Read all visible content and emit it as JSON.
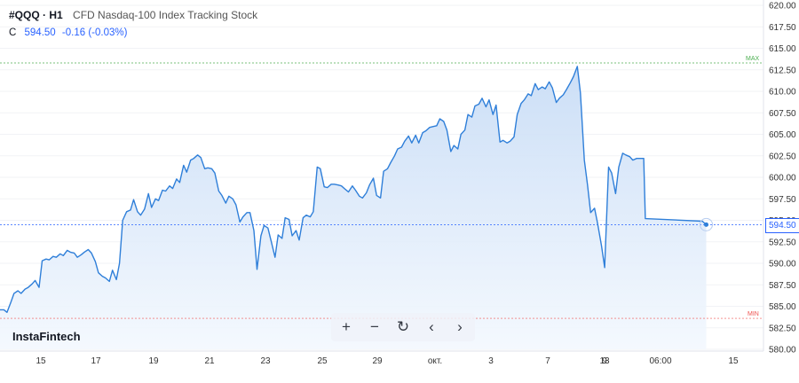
{
  "header": {
    "symbol": "#QQQ · H1",
    "description": "CFD Nasdaq-100 Index Tracking Stock",
    "close_label": "C",
    "close_value": "594.50",
    "change": "-0.16 (-0.03%)"
  },
  "brand": "InstaFintech",
  "toolbar": {
    "buttons": [
      {
        "label": "+",
        "icon": "zoom-in-icon"
      },
      {
        "label": "−",
        "icon": "zoom-out-icon"
      },
      {
        "label": "↻",
        "icon": "reset-icon"
      },
      {
        "label": "‹",
        "icon": "scroll-left-icon"
      },
      {
        "label": "›",
        "icon": "scroll-right-icon"
      }
    ]
  },
  "current_price_label": "594.50",
  "colors": {
    "line": "#2f7fd9",
    "area_top": "#c9ddf6",
    "area_bottom": "#f3f8fe",
    "max_line": "#4caf50",
    "min_line": "#ef5350",
    "price_line": "#2962ff"
  },
  "chart_data": {
    "type": "area",
    "title": "#QQQ · H1",
    "subtitle": "CFD Nasdaq-100 Index Tracking Stock",
    "y_ticks": [
      "620.00",
      "617.50",
      "615.00",
      "612.50",
      "610.00",
      "607.50",
      "605.00",
      "602.50",
      "600.00",
      "597.50",
      "595.00",
      "592.50",
      "590.00",
      "587.50",
      "585.00",
      "582.50",
      "580.00"
    ],
    "ylim": [
      580,
      620
    ],
    "x_ticks": [
      "15",
      "17",
      "19",
      "21",
      "23",
      "25",
      "29",
      "окт.",
      "3",
      "7",
      "9",
      "13",
      "06:00",
      "15"
    ],
    "max_label": "MAX",
    "max_value": 613.3,
    "min_label": "MIN",
    "min_value": 583.6,
    "last_value": 594.5,
    "x_range": [
      0,
      100
    ],
    "points": [
      [
        0,
        584.6
      ],
      [
        0.5,
        584.6
      ],
      [
        0.9,
        584.3
      ],
      [
        1.4,
        585.5
      ],
      [
        1.8,
        586.5
      ],
      [
        2.3,
        586.8
      ],
      [
        2.7,
        586.5
      ],
      [
        3.2,
        587.0
      ],
      [
        3.6,
        587.2
      ],
      [
        4.1,
        587.6
      ],
      [
        4.5,
        588.0
      ],
      [
        5.0,
        587.2
      ],
      [
        5.4,
        590.3
      ],
      [
        5.9,
        590.5
      ],
      [
        6.3,
        590.4
      ],
      [
        6.8,
        590.8
      ],
      [
        7.2,
        590.7
      ],
      [
        7.7,
        591.1
      ],
      [
        8.1,
        590.9
      ],
      [
        8.6,
        591.5
      ],
      [
        9.0,
        591.3
      ],
      [
        9.5,
        591.2
      ],
      [
        9.9,
        590.7
      ],
      [
        10.4,
        591.0
      ],
      [
        10.8,
        591.3
      ],
      [
        11.3,
        591.6
      ],
      [
        11.7,
        591.2
      ],
      [
        12.2,
        590.2
      ],
      [
        12.6,
        588.9
      ],
      [
        13.1,
        588.5
      ],
      [
        13.5,
        588.3
      ],
      [
        14.0,
        587.9
      ],
      [
        14.4,
        589.2
      ],
      [
        14.9,
        588.1
      ],
      [
        15.3,
        590.0
      ],
      [
        15.7,
        595.0
      ],
      [
        16.2,
        596.0
      ],
      [
        16.7,
        596.2
      ],
      [
        17.1,
        597.4
      ],
      [
        17.6,
        596.0
      ],
      [
        18.0,
        595.6
      ],
      [
        18.5,
        596.3
      ],
      [
        19.0,
        598.1
      ],
      [
        19.4,
        596.5
      ],
      [
        19.9,
        597.5
      ],
      [
        20.3,
        597.3
      ],
      [
        20.8,
        598.5
      ],
      [
        21.2,
        598.4
      ],
      [
        21.7,
        599.0
      ],
      [
        22.1,
        598.7
      ],
      [
        22.6,
        599.8
      ],
      [
        23.0,
        599.4
      ],
      [
        23.5,
        601.4
      ],
      [
        23.9,
        600.6
      ],
      [
        24.4,
        602.0
      ],
      [
        24.8,
        602.2
      ],
      [
        25.3,
        602.6
      ],
      [
        25.7,
        602.3
      ],
      [
        26.2,
        601.0
      ],
      [
        26.6,
        601.1
      ],
      [
        27.1,
        601.0
      ],
      [
        27.5,
        600.5
      ],
      [
        28.0,
        598.4
      ],
      [
        28.4,
        597.9
      ],
      [
        28.9,
        597.0
      ],
      [
        29.3,
        597.8
      ],
      [
        29.8,
        597.5
      ],
      [
        30.2,
        596.8
      ],
      [
        30.7,
        594.8
      ],
      [
        31.1,
        595.4
      ],
      [
        31.6,
        595.9
      ],
      [
        32.0,
        595.9
      ],
      [
        32.5,
        593.8
      ],
      [
        32.9,
        589.3
      ],
      [
        33.4,
        593.2
      ],
      [
        33.8,
        594.4
      ],
      [
        34.3,
        594.1
      ],
      [
        34.7,
        592.6
      ],
      [
        35.2,
        590.7
      ],
      [
        35.6,
        593.3
      ],
      [
        36.1,
        592.9
      ],
      [
        36.5,
        595.3
      ],
      [
        37.0,
        595.1
      ],
      [
        37.4,
        593.2
      ],
      [
        37.9,
        593.8
      ],
      [
        38.3,
        592.7
      ],
      [
        38.8,
        595.3
      ],
      [
        39.2,
        595.6
      ],
      [
        39.7,
        595.4
      ],
      [
        40.1,
        596.0
      ],
      [
        40.6,
        601.2
      ],
      [
        41.0,
        601.0
      ],
      [
        41.5,
        598.9
      ],
      [
        41.9,
        598.8
      ],
      [
        42.4,
        599.2
      ],
      [
        42.8,
        599.2
      ],
      [
        43.3,
        599.1
      ],
      [
        43.7,
        599.0
      ],
      [
        44.2,
        598.6
      ],
      [
        44.6,
        598.3
      ],
      [
        45.1,
        599.0
      ],
      [
        45.5,
        598.5
      ],
      [
        46.0,
        597.8
      ],
      [
        46.4,
        597.6
      ],
      [
        46.9,
        598.2
      ],
      [
        47.3,
        599.1
      ],
      [
        47.8,
        599.9
      ],
      [
        48.2,
        597.9
      ],
      [
        48.7,
        597.6
      ],
      [
        49.1,
        600.7
      ],
      [
        49.6,
        601.0
      ],
      [
        50.0,
        601.7
      ],
      [
        50.5,
        602.5
      ],
      [
        50.9,
        603.3
      ],
      [
        51.4,
        603.5
      ],
      [
        51.8,
        604.2
      ],
      [
        52.3,
        604.8
      ],
      [
        52.7,
        604.0
      ],
      [
        53.2,
        604.9
      ],
      [
        53.6,
        604.0
      ],
      [
        54.1,
        605.2
      ],
      [
        54.5,
        605.4
      ],
      [
        55.0,
        605.8
      ],
      [
        55.4,
        605.9
      ],
      [
        55.9,
        606.0
      ],
      [
        56.3,
        606.8
      ],
      [
        56.8,
        606.5
      ],
      [
        57.2,
        605.5
      ],
      [
        57.7,
        603.0
      ],
      [
        58.1,
        603.7
      ],
      [
        58.6,
        603.3
      ],
      [
        59.0,
        605.0
      ],
      [
        59.5,
        605.5
      ],
      [
        59.9,
        607.3
      ],
      [
        60.4,
        607.0
      ],
      [
        60.8,
        608.3
      ],
      [
        61.3,
        608.5
      ],
      [
        61.7,
        609.2
      ],
      [
        62.2,
        608.2
      ],
      [
        62.6,
        609.0
      ],
      [
        63.1,
        607.3
      ],
      [
        63.5,
        608.4
      ],
      [
        64.0,
        604.1
      ],
      [
        64.4,
        604.3
      ],
      [
        64.9,
        604.0
      ],
      [
        65.3,
        604.2
      ],
      [
        65.8,
        604.7
      ],
      [
        66.2,
        607.3
      ],
      [
        66.7,
        608.6
      ],
      [
        67.1,
        609.0
      ],
      [
        67.6,
        609.7
      ],
      [
        68.0,
        609.5
      ],
      [
        68.5,
        610.9
      ],
      [
        68.9,
        610.2
      ],
      [
        69.4,
        610.5
      ],
      [
        69.8,
        610.3
      ],
      [
        70.3,
        611.1
      ],
      [
        70.7,
        610.4
      ],
      [
        71.2,
        608.7
      ],
      [
        71.6,
        609.2
      ],
      [
        72.1,
        609.6
      ],
      [
        72.5,
        610.2
      ],
      [
        73.0,
        611.0
      ],
      [
        73.4,
        611.7
      ],
      [
        73.9,
        612.9
      ],
      [
        74.3,
        609.8
      ],
      [
        74.8,
        602.0
      ],
      [
        75.2,
        599.1
      ],
      [
        75.6,
        595.9
      ],
      [
        76.1,
        596.4
      ],
      [
        76.5,
        594.6
      ],
      [
        77.0,
        592.0
      ],
      [
        77.4,
        589.5
      ],
      [
        77.9,
        601.2
      ],
      [
        78.3,
        600.5
      ],
      [
        78.8,
        598.1
      ],
      [
        79.2,
        601.2
      ],
      [
        79.7,
        602.8
      ],
      [
        80.1,
        602.6
      ],
      [
        80.6,
        602.4
      ],
      [
        81.0,
        602.0
      ],
      [
        81.5,
        602.2
      ],
      [
        81.9,
        602.2
      ],
      [
        82.4,
        602.2
      ],
      [
        82.6,
        595.2
      ],
      [
        89.9,
        594.9
      ],
      [
        90.4,
        594.5
      ]
    ]
  }
}
